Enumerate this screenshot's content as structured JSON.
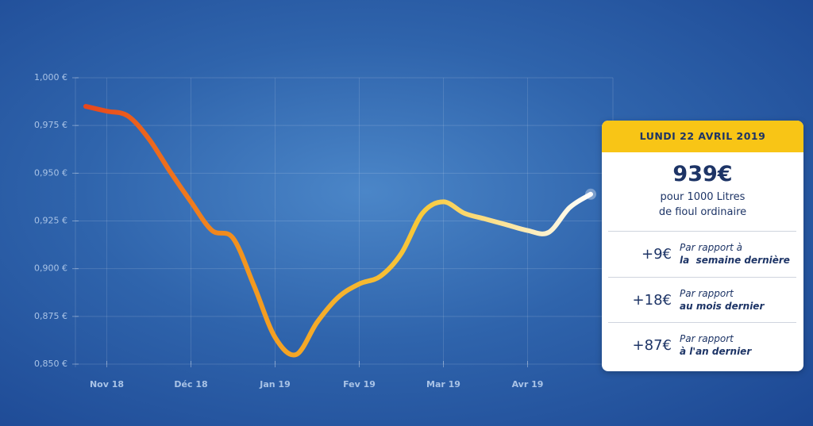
{
  "chart_data": {
    "type": "line",
    "categories": [
      null,
      "Nov 18",
      null,
      null,
      null,
      "Déc 18",
      null,
      null,
      null,
      "Jan 19",
      null,
      null,
      null,
      "Fev 19",
      null,
      null,
      null,
      "Mar 19",
      null,
      null,
      null,
      "Avr 19",
      null,
      null,
      null
    ],
    "values": [
      0.985,
      0.9825,
      0.98,
      0.968,
      0.951,
      0.935,
      0.92,
      0.916,
      0.891,
      0.864,
      0.855,
      0.872,
      0.885,
      0.892,
      0.896,
      0.908,
      0.929,
      0.935,
      0.929,
      0.926,
      0.923,
      0.92,
      0.919,
      0.932,
      0.939
    ],
    "colors": [
      "#e8471c",
      "#f39a1f",
      "#f8c93a",
      "#ffffff"
    ],
    "ylim": [
      0.85,
      1.0
    ],
    "yticks": [
      {
        "value": 0.85,
        "label": "0,850 €"
      },
      {
        "value": 0.875,
        "label": "0,875 €"
      },
      {
        "value": 0.9,
        "label": "0,900 €"
      },
      {
        "value": 0.925,
        "label": "0,925 €"
      },
      {
        "value": 0.95,
        "label": "0,950 €"
      },
      {
        "value": 0.975,
        "label": "0,975 €"
      },
      {
        "value": 1.0,
        "label": "1,000 €"
      }
    ],
    "grid": true
  },
  "card": {
    "date": "LUNDI 22 AVRIL 2019",
    "price": "939€",
    "caption": [
      "pour 1000 Litres",
      "de fioul ordinaire"
    ],
    "comparisons": [
      {
        "change": "+9€",
        "label": [
          "Par rapport à",
          "la  semaine dernière"
        ]
      },
      {
        "change": "+18€",
        "label": [
          "Par rapport",
          "au mois dernier"
        ]
      },
      {
        "change": "+87€",
        "label": [
          "Par rapport",
          "à l'an dernier"
        ]
      }
    ]
  }
}
